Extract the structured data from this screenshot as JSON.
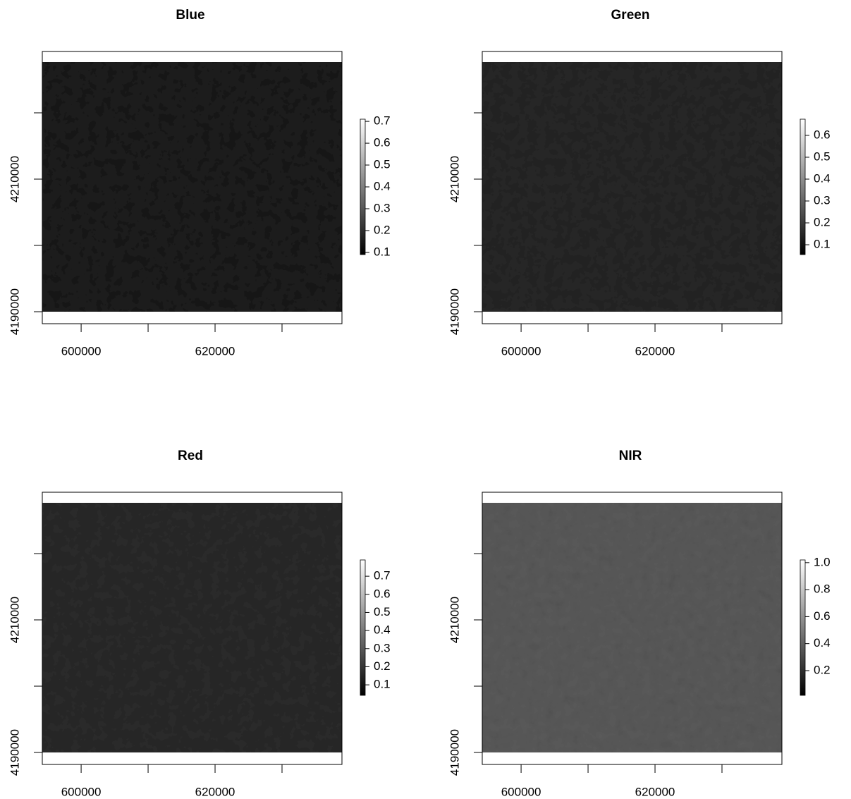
{
  "chart_data": [
    {
      "type": "raster",
      "title": "Blue",
      "xlim": [
        594200,
        638950
      ],
      "xticks": [
        600000,
        {
          "value": 610000,
          "label": null
        },
        620000,
        {
          "value": 630000,
          "label": null
        }
      ],
      "ylim": [
        4188190,
        4229255
      ],
      "yticks": [
        4190000,
        {
          "value": 4200000,
          "label": null
        },
        4210000,
        {
          "value": 4220000,
          "label": null
        }
      ],
      "zlim": [
        0.09,
        0.71
      ],
      "zticks": [
        0.1,
        0.2,
        0.3,
        0.4,
        0.5,
        0.6,
        0.7
      ]
    },
    {
      "type": "raster",
      "title": "Green",
      "xlim": [
        594200,
        638950
      ],
      "xticks": [
        600000,
        {
          "value": 610000,
          "label": null
        },
        620000,
        {
          "value": 630000,
          "label": null
        }
      ],
      "ylim": [
        4188190,
        4229255
      ],
      "yticks": [
        4190000,
        {
          "value": 4200000,
          "label": null
        },
        4210000,
        {
          "value": 4220000,
          "label": null
        }
      ],
      "zlim": [
        0.055,
        0.674
      ],
      "zticks": [
        0.1,
        0.2,
        0.3,
        0.4,
        0.5,
        0.6
      ]
    },
    {
      "type": "raster",
      "title": "Red",
      "xlim": [
        594200,
        638950
      ],
      "xticks": [
        600000,
        {
          "value": 610000,
          "label": null
        },
        620000,
        {
          "value": 630000,
          "label": null
        }
      ],
      "ylim": [
        4188190,
        4229255
      ],
      "yticks": [
        4190000,
        {
          "value": 4200000,
          "label": null
        },
        4210000,
        {
          "value": 4220000,
          "label": null
        }
      ],
      "zlim": [
        0.042,
        0.79
      ],
      "zticks": [
        0.1,
        0.2,
        0.3,
        0.4,
        0.5,
        0.6,
        0.7
      ]
    },
    {
      "type": "raster",
      "title": "NIR",
      "xlim": [
        594200,
        638950
      ],
      "xticks": [
        600000,
        {
          "value": 610000,
          "label": null
        },
        620000,
        {
          "value": 630000,
          "label": null
        }
      ],
      "ylim": [
        4188190,
        4229255
      ],
      "yticks": [
        4190000,
        {
          "value": 4200000,
          "label": null
        },
        4210000,
        {
          "value": 4220000,
          "label": null
        }
      ],
      "zlim": [
        0.017,
        1.02
      ],
      "zticks": [
        0.2,
        0.4,
        0.6,
        0.8,
        {
          "value": 1.0,
          "label": "1.0"
        }
      ]
    }
  ]
}
